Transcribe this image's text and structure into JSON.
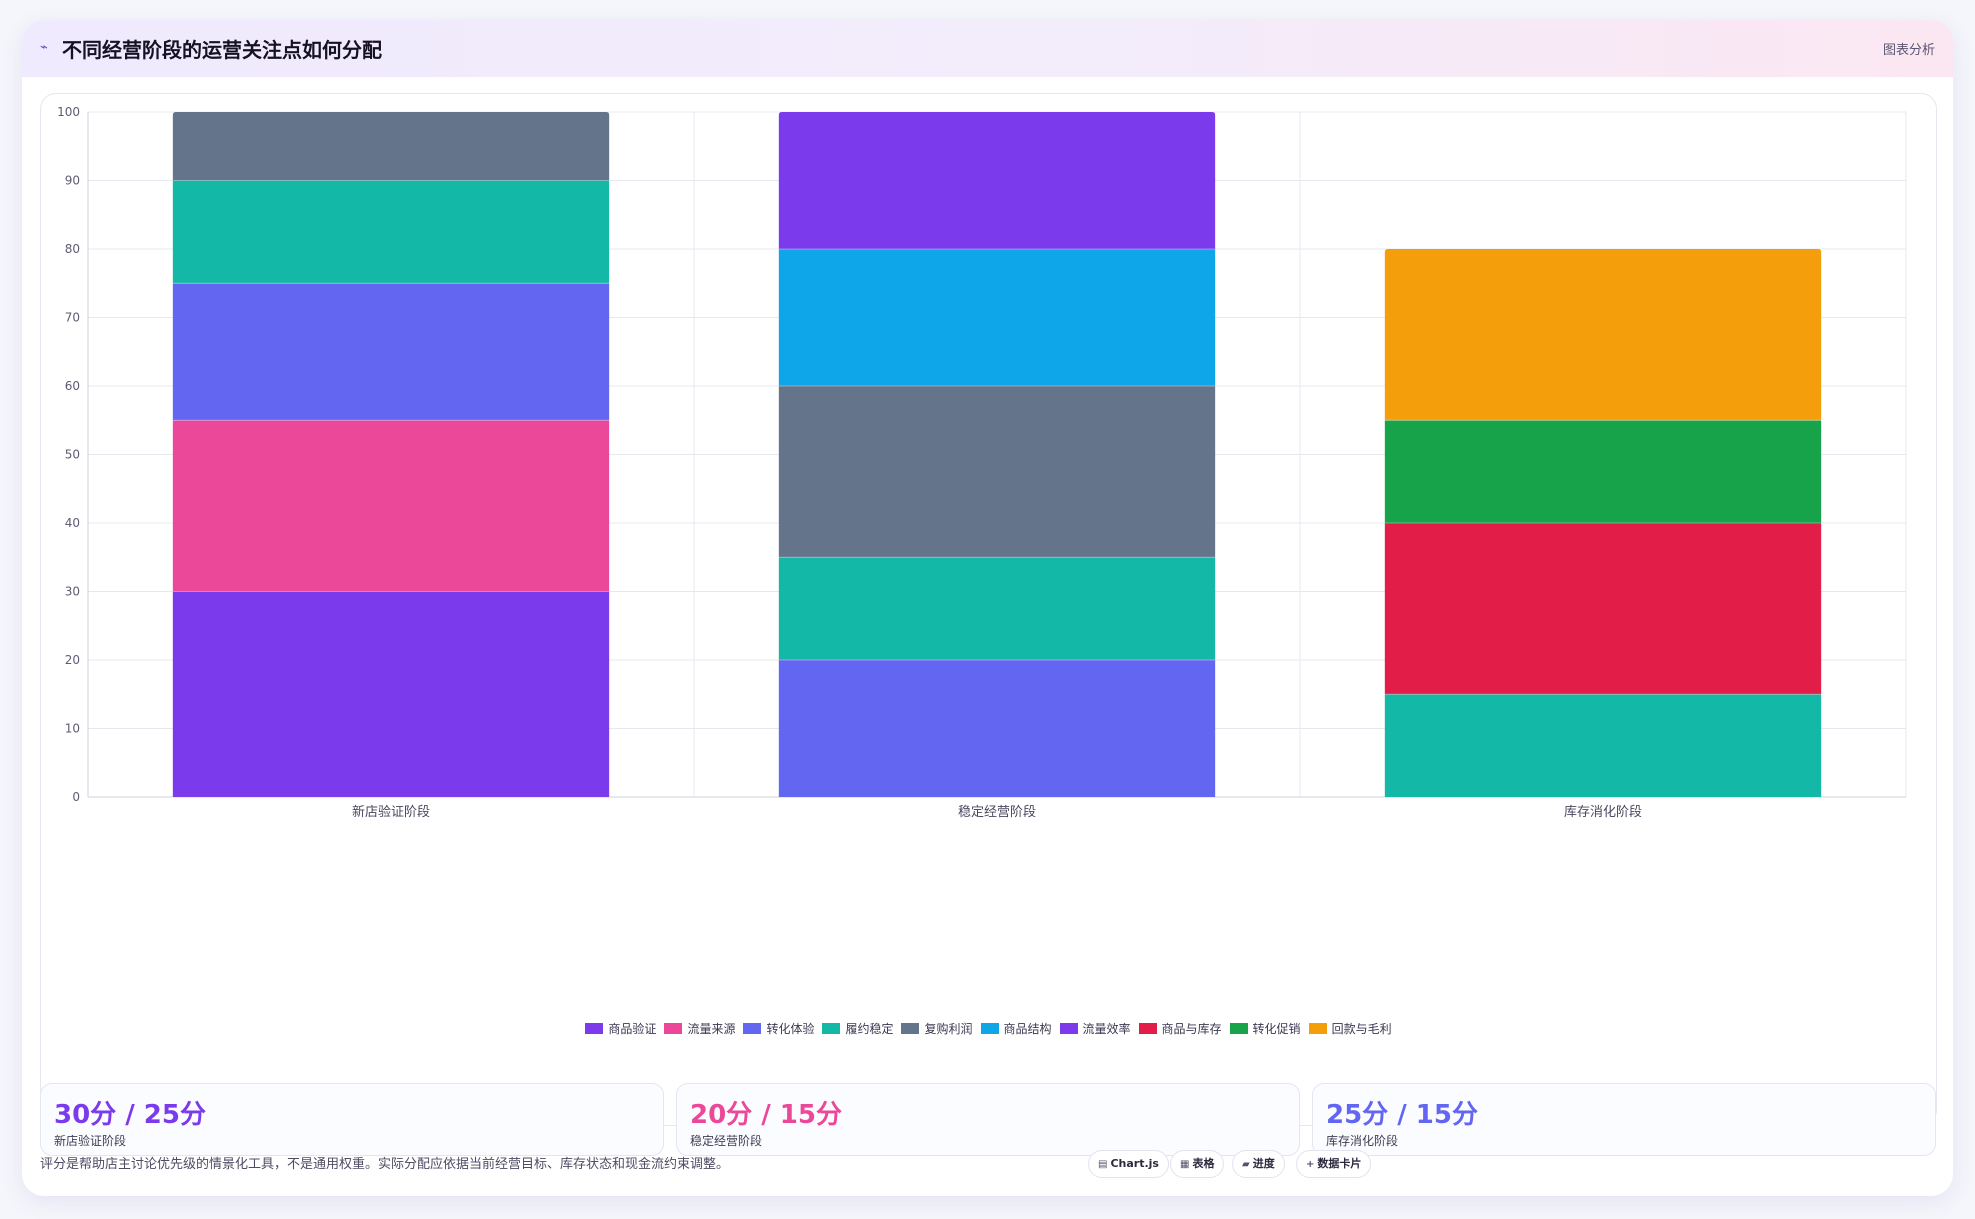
{
  "header": {
    "icon": "chart-line-icon",
    "title": "不同经营阶段的运营关注点如何分配",
    "action_label": "图表分析"
  },
  "chart_data": {
    "type": "bar",
    "stacked": true,
    "title": "",
    "xlabel": "",
    "ylabel": "",
    "categories": [
      "新店验证阶段",
      "稳定经营阶段",
      "库存消化阶段"
    ],
    "ylim": [
      0,
      100
    ],
    "yticks": [
      0,
      10,
      20,
      30,
      40,
      50,
      60,
      70,
      80,
      90,
      100
    ],
    "grid": true,
    "legend_position": "bottom",
    "series": [
      {
        "name": "商品验证",
        "color": "#7c3aed",
        "values": [
          30,
          0,
          0
        ]
      },
      {
        "name": "流量来源",
        "color": "#ec4899",
        "values": [
          25,
          0,
          0
        ]
      },
      {
        "name": "转化体验",
        "color": "#6366f1",
        "values": [
          20,
          20,
          0
        ]
      },
      {
        "name": "履约稳定",
        "color": "#14b8a6",
        "values": [
          15,
          15,
          15
        ]
      },
      {
        "name": "复购利润",
        "color": "#64748b",
        "values": [
          10,
          25,
          0
        ]
      },
      {
        "name": "商品结构",
        "color": "#0ea5e9",
        "values": [
          0,
          20,
          0
        ]
      },
      {
        "name": "流量效率",
        "color": "#7c3aed",
        "values": [
          0,
          20,
          0
        ]
      },
      {
        "name": "商品与库存",
        "color": "#e11d48",
        "values": [
          0,
          0,
          25
        ]
      },
      {
        "name": "转化促销",
        "color": "#16a34a",
        "values": [
          0,
          0,
          15
        ]
      },
      {
        "name": "回款与毛利",
        "color": "#f59e0b",
        "values": [
          0,
          0,
          25
        ]
      }
    ]
  },
  "stats": [
    {
      "value": "30分 / 25分",
      "label": "新店验证阶段",
      "color": "#7c3aed"
    },
    {
      "value": "20分 / 15分",
      "label": "稳定经营阶段",
      "color": "#ec4899"
    },
    {
      "value": "25分 / 15分",
      "label": "库存消化阶段",
      "color": "#6366f1"
    }
  ],
  "footnote": "评分是帮助店主讨论优先级的情景化工具，不是通用权重。实际分配应依据当前经营目标、库存状态和现金流约束调整。",
  "chips": [
    {
      "icon": "▤",
      "label": "Chart.js"
    },
    {
      "icon": "▦",
      "label": "表格"
    },
    {
      "icon": "▰",
      "label": "进度"
    },
    {
      "icon": "+",
      "label": "数据卡片"
    }
  ]
}
